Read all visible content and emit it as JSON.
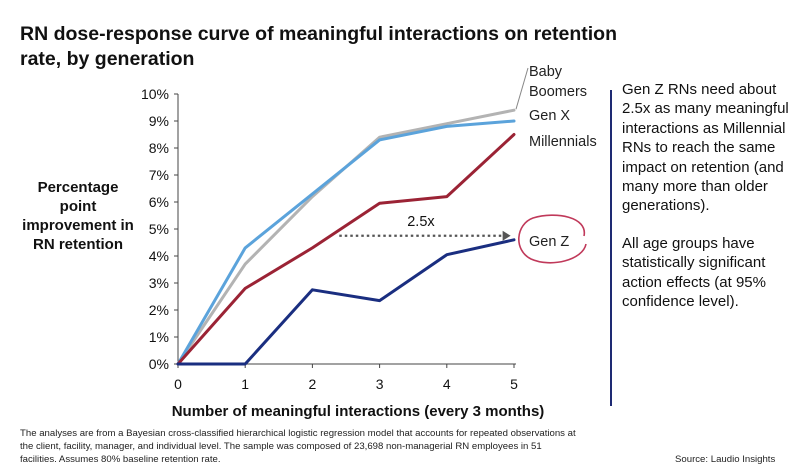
{
  "title": "RN dose-response curve of meaningful interactions on retention rate, by generation",
  "side_note": {
    "para1": "Gen Z RNs need about 2.5x as many meaningful interactions as Millennial RNs to reach the same impact on retention (and many more than older generations).",
    "para2": "All age groups have statistically significant action effects (at 95% confidence level)."
  },
  "footnote": "The analyses are from a Bayesian cross-classified hierarchical logistic regression model that accounts for repeated observations at the client, facility, manager, and individual level.  The sample was composed of 23,698 non-managerial RN employees in 51 facilities.  Assumes 80% baseline retention rate.",
  "source": "Source: Laudio Insights",
  "chart_data": {
    "type": "line",
    "xlabel": "Number of meaningful interactions (every 3 months)",
    "ylabel": "Percentage point improvement in RN retention",
    "x": [
      0,
      1,
      2,
      3,
      4,
      5
    ],
    "xlim": [
      0,
      5
    ],
    "ylim": [
      0,
      10
    ],
    "yticks": [
      "0%",
      "1%",
      "2%",
      "3%",
      "4%",
      "5%",
      "6%",
      "7%",
      "8%",
      "9%",
      "10%"
    ],
    "grid": false,
    "series": [
      {
        "name": "Baby Boomers",
        "color": "#b3b3b3",
        "values": [
          0,
          3.7,
          6.2,
          8.4,
          8.9,
          9.4
        ]
      },
      {
        "name": "Gen X",
        "color": "#5ba3db",
        "values": [
          0,
          4.3,
          6.3,
          8.3,
          8.8,
          9.0
        ]
      },
      {
        "name": "Millennials",
        "color": "#9b2335",
        "values": [
          0,
          2.8,
          4.3,
          5.95,
          6.2,
          8.5
        ]
      },
      {
        "name": "Gen Z",
        "color": "#1a2e80",
        "values": [
          0,
          0,
          2.75,
          2.35,
          4.05,
          4.6
        ]
      }
    ],
    "annotation": {
      "text": "2.5x",
      "from_x": 2.4,
      "to_x": 4.95,
      "y": 4.75
    }
  }
}
